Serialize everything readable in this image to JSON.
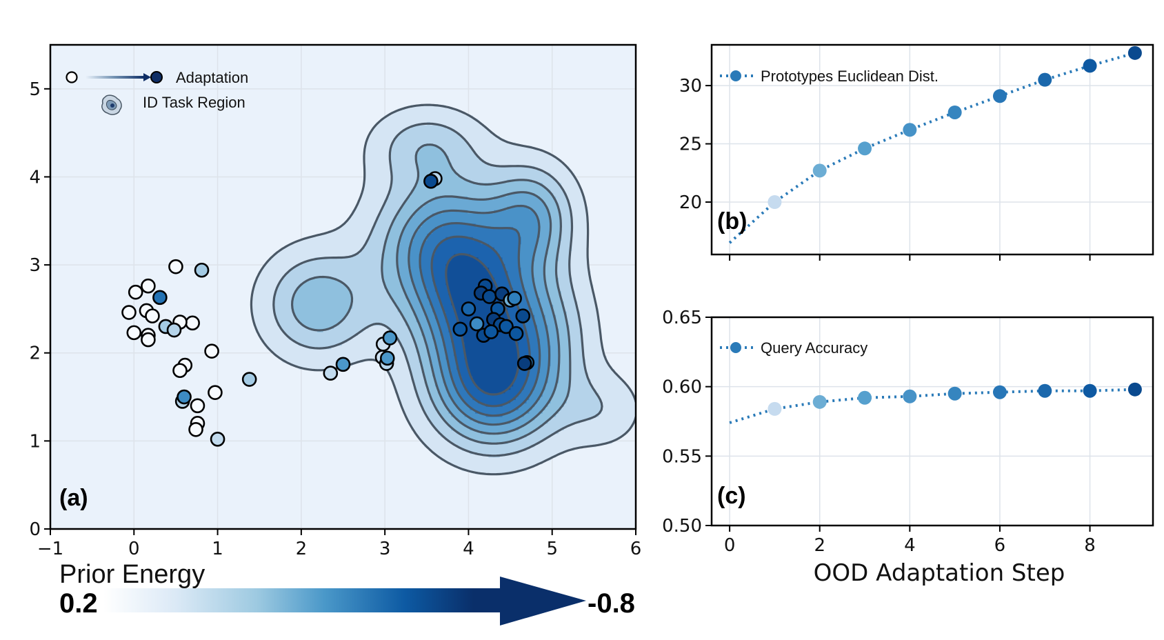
{
  "figure": {
    "colors": {
      "panel_bg": "#eaf2fb",
      "contour_line": "#4a5866",
      "series_line": "#2a7ab8",
      "grid": "#dde3ea",
      "cmap": [
        "#f7fbff",
        "#dbe9f6",
        "#bad6eb",
        "#89bedc",
        "#539ecd",
        "#2b7bba",
        "#0b559f",
        "#08306b"
      ]
    }
  },
  "chart_data": [
    {
      "id": "a",
      "type": "scatter",
      "panel_label": "(a)",
      "title": "",
      "xlabel": "",
      "ylabel": "",
      "xlim": [
        -1,
        6
      ],
      "ylim": [
        0,
        5.5
      ],
      "xticks": [
        -1,
        0,
        1,
        2,
        3,
        4,
        5,
        6
      ],
      "xtick_labels": [
        "−1",
        "0",
        "1",
        "2",
        "3",
        "4",
        "5",
        "6"
      ],
      "yticks": [
        0,
        1,
        2,
        3,
        4,
        5
      ],
      "ytick_labels": [
        "0",
        "1",
        "2",
        "3",
        "4",
        "5"
      ],
      "grid": true,
      "legend": {
        "placement": "top-left",
        "entries": [
          {
            "label": "Adaptation",
            "icon": "arrow-start-to-end-marker"
          },
          {
            "label": "ID Task Region",
            "icon": "density-blob-icon"
          }
        ]
      },
      "density_region": {
        "description": "ID Task Region (filled KDE contours, 8 levels)",
        "levels": 8,
        "modes": [
          {
            "x": 2.2,
            "y": 2.55,
            "sx": 0.45,
            "sy": 0.42,
            "w": 0.55
          },
          {
            "x": 3.7,
            "y": 3.2,
            "sx": 0.55,
            "sy": 0.55,
            "w": 0.85
          },
          {
            "x": 4.15,
            "y": 2.4,
            "sx": 0.5,
            "sy": 0.6,
            "w": 1.0
          },
          {
            "x": 4.3,
            "y": 1.55,
            "sx": 0.5,
            "sy": 0.45,
            "w": 0.85
          },
          {
            "x": 4.75,
            "y": 3.55,
            "sx": 0.35,
            "sy": 0.4,
            "w": 0.6
          },
          {
            "x": 3.5,
            "y": 4.35,
            "sx": 0.45,
            "sy": 0.3,
            "w": 0.35
          },
          {
            "x": 5.6,
            "y": 1.35,
            "sx": 0.35,
            "sy": 0.3,
            "w": 0.22
          },
          {
            "x": 4.9,
            "y": 2.2,
            "sx": 0.4,
            "sy": 0.55,
            "w": 0.35
          }
        ]
      },
      "points": [
        {
          "x": 0.5,
          "y": 2.98,
          "energy": 0.2
        },
        {
          "x": 0.81,
          "y": 2.94,
          "energy": -0.15
        },
        {
          "x": 0.17,
          "y": 2.76,
          "energy": 0.2
        },
        {
          "x": 0.02,
          "y": 2.69,
          "energy": 0.2
        },
        {
          "x": 0.31,
          "y": 2.63,
          "energy": -0.55
        },
        {
          "x": -0.06,
          "y": 2.46,
          "energy": 0.2
        },
        {
          "x": 0.15,
          "y": 2.48,
          "energy": 0.2
        },
        {
          "x": 0.22,
          "y": 2.42,
          "energy": 0.2
        },
        {
          "x": 0.38,
          "y": 2.3,
          "energy": -0.15
        },
        {
          "x": 0.7,
          "y": 2.34,
          "energy": 0.2
        },
        {
          "x": 0.55,
          "y": 2.35,
          "energy": 0.2
        },
        {
          "x": 0.48,
          "y": 2.26,
          "energy": -0.1
        },
        {
          "x": 0.0,
          "y": 2.23,
          "energy": 0.2
        },
        {
          "x": 0.17,
          "y": 2.2,
          "energy": 0.2
        },
        {
          "x": 0.17,
          "y": 2.15,
          "energy": 0.2
        },
        {
          "x": 0.93,
          "y": 2.02,
          "energy": 0.2
        },
        {
          "x": 0.61,
          "y": 1.86,
          "energy": 0.2
        },
        {
          "x": 0.55,
          "y": 1.8,
          "energy": 0.2
        },
        {
          "x": 1.38,
          "y": 1.7,
          "energy": -0.15
        },
        {
          "x": 0.97,
          "y": 1.55,
          "energy": 0.2
        },
        {
          "x": 0.58,
          "y": 1.45,
          "energy": -0.1
        },
        {
          "x": 0.6,
          "y": 1.5,
          "energy": -0.45
        },
        {
          "x": 0.76,
          "y": 1.4,
          "energy": 0.2
        },
        {
          "x": 0.76,
          "y": 1.2,
          "energy": 0.2
        },
        {
          "x": 0.74,
          "y": 1.13,
          "energy": 0.2
        },
        {
          "x": 1.0,
          "y": 1.02,
          "energy": -0.05
        },
        {
          "x": 2.35,
          "y": 1.77,
          "energy": -0.05
        },
        {
          "x": 2.5,
          "y": 1.87,
          "energy": -0.4
        },
        {
          "x": 2.98,
          "y": 2.1,
          "energy": 0.0
        },
        {
          "x": 3.06,
          "y": 2.17,
          "energy": -0.4
        },
        {
          "x": 2.97,
          "y": 1.95,
          "energy": 0.0
        },
        {
          "x": 3.02,
          "y": 1.88,
          "energy": -0.1
        },
        {
          "x": 3.03,
          "y": 1.94,
          "energy": -0.4
        },
        {
          "x": 3.6,
          "y": 3.98,
          "energy": -0.1
        },
        {
          "x": 3.55,
          "y": 3.95,
          "energy": -0.7
        },
        {
          "x": 4.2,
          "y": 2.76,
          "energy": -0.7
        },
        {
          "x": 4.15,
          "y": 2.68,
          "energy": -0.75
        },
        {
          "x": 4.25,
          "y": 2.64,
          "energy": -0.7
        },
        {
          "x": 4.4,
          "y": 2.67,
          "energy": -0.75
        },
        {
          "x": 4.5,
          "y": 2.6,
          "energy": -0.3
        },
        {
          "x": 4.55,
          "y": 2.62,
          "energy": -0.5
        },
        {
          "x": 4.0,
          "y": 2.5,
          "energy": -0.6
        },
        {
          "x": 4.35,
          "y": 2.5,
          "energy": -0.65
        },
        {
          "x": 4.65,
          "y": 2.42,
          "energy": -0.7
        },
        {
          "x": 4.1,
          "y": 2.33,
          "energy": -0.45
        },
        {
          "x": 4.3,
          "y": 2.38,
          "energy": -0.75
        },
        {
          "x": 4.38,
          "y": 2.32,
          "energy": -0.7
        },
        {
          "x": 4.45,
          "y": 2.3,
          "energy": -0.65
        },
        {
          "x": 3.9,
          "y": 2.27,
          "energy": -0.65
        },
        {
          "x": 4.18,
          "y": 2.2,
          "energy": -0.7
        },
        {
          "x": 4.27,
          "y": 2.24,
          "energy": -0.65
        },
        {
          "x": 4.57,
          "y": 2.22,
          "energy": -0.65
        },
        {
          "x": 4.7,
          "y": 1.89,
          "energy": -0.5
        },
        {
          "x": 4.67,
          "y": 1.88,
          "energy": -0.75
        }
      ],
      "colorbar": {
        "title": "Prior Energy",
        "min_label": "0.2",
        "max_label": "-0.8",
        "range": [
          0.2,
          -0.8
        ]
      }
    },
    {
      "id": "b",
      "type": "line",
      "panel_label": "(b)",
      "title": "",
      "xlabel": "",
      "ylabel": "",
      "xlim": [
        -0.4,
        9.4
      ],
      "ylim": [
        15.5,
        33.5
      ],
      "xticks": [
        0,
        2,
        4,
        6,
        8
      ],
      "xtick_labels": [
        "",
        "",
        "",
        "",
        ""
      ],
      "yticks": [
        20,
        25,
        30
      ],
      "ytick_labels": [
        "20",
        "25",
        "30"
      ],
      "grid": true,
      "legend": {
        "placement": "top-left",
        "entries": [
          {
            "label": "Prototypes Euclidean Dist."
          }
        ]
      },
      "series": [
        {
          "name": "Prototypes Euclidean Dist.",
          "style": "dotted-line-with-markers",
          "line_start": {
            "x": 0,
            "y": 16.5
          },
          "x": [
            1,
            2,
            3,
            4,
            5,
            6,
            7,
            8,
            9
          ],
          "values": [
            20.0,
            22.7,
            24.6,
            26.2,
            27.7,
            29.1,
            30.5,
            31.7,
            32.8
          ]
        }
      ]
    },
    {
      "id": "c",
      "type": "line",
      "panel_label": "(c)",
      "title": "",
      "xlabel": "OOD Adaptation Step",
      "ylabel": "",
      "xlim": [
        -0.4,
        9.4
      ],
      "ylim": [
        0.5,
        0.65
      ],
      "xticks": [
        0,
        2,
        4,
        6,
        8
      ],
      "xtick_labels": [
        "0",
        "2",
        "4",
        "6",
        "8"
      ],
      "yticks": [
        0.5,
        0.55,
        0.6,
        0.65
      ],
      "ytick_labels": [
        "0.50",
        "0.55",
        "0.60",
        "0.65"
      ],
      "grid": true,
      "legend": {
        "placement": "top-left",
        "entries": [
          {
            "label": "Query Accuracy"
          }
        ]
      },
      "series": [
        {
          "name": "Query Accuracy",
          "style": "dotted-line-with-markers",
          "line_start": {
            "x": 0,
            "y": 0.574
          },
          "x": [
            1,
            2,
            3,
            4,
            5,
            6,
            7,
            8,
            9
          ],
          "values": [
            0.584,
            0.589,
            0.592,
            0.593,
            0.595,
            0.596,
            0.597,
            0.597,
            0.598
          ]
        }
      ]
    }
  ]
}
